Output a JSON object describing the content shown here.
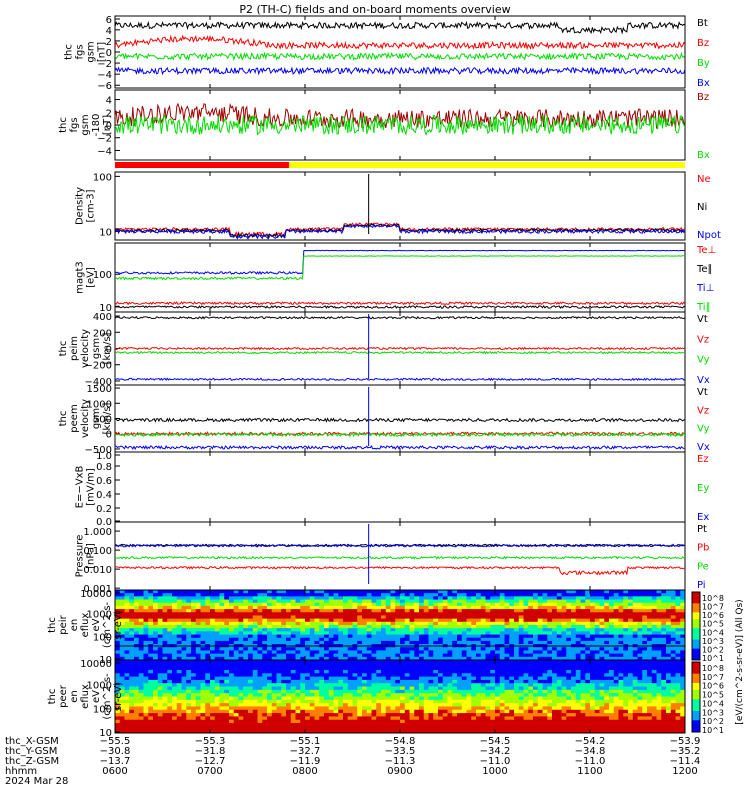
{
  "title": "P2 (TH-C) fields and on-board moments overview",
  "colors": {
    "black": "#000000",
    "red": "#ff0000",
    "green": "#00dd00",
    "blue": "#0000ff",
    "darkred": "#a00000",
    "yellow": "#ffff00",
    "lime": "#33ff33"
  },
  "chart_data": [
    {
      "id": "fgs",
      "type": "line",
      "ylabel": [
        "thc",
        "fgs",
        "gsm",
        "[nT]"
      ],
      "yticks": [
        "6",
        "4",
        "2",
        "0",
        "−2",
        "−4",
        "−6"
      ],
      "ylim": [
        -6.5,
        6.5
      ],
      "series": [
        {
          "name": "Bt",
          "color": "black",
          "base": 4.8
        },
        {
          "name": "Bz",
          "color": "red",
          "base": 1.2
        },
        {
          "name": "By",
          "color": "green",
          "base": -0.8
        },
        {
          "name": "Bx",
          "color": "blue",
          "base": -3.4
        }
      ]
    },
    {
      "id": "fgs_hp",
      "type": "line",
      "ylabel": [
        "thc",
        "fgs",
        "gsm",
        "-180",
        "[nT]"
      ],
      "yticks": [
        "4",
        "2",
        "0",
        "−2",
        "−4"
      ],
      "ylim": [
        -5.5,
        5.5
      ],
      "series": [
        {
          "name": "Bz",
          "color": "darkred",
          "base": 1.0
        },
        {
          "name": "Bx",
          "color": "green",
          "base": 0.0
        }
      ]
    },
    {
      "id": "mode",
      "type": "bar",
      "segments": [
        {
          "from": "0600",
          "to": "0750",
          "color": "red"
        },
        {
          "from": "0750",
          "to": "1200",
          "color": "yellow"
        }
      ]
    },
    {
      "id": "density",
      "type": "line",
      "yscale": "log",
      "ylabel": [
        "Density",
        "[cm-3]"
      ],
      "yticks": [
        "100",
        "10"
      ],
      "ylim": [
        7,
        120
      ],
      "series": [
        {
          "name": "Ne",
          "color": "red",
          "base": 11
        },
        {
          "name": "Ni",
          "color": "black",
          "base": 10.5
        },
        {
          "name": "Npot",
          "color": "blue",
          "base": 10
        }
      ]
    },
    {
      "id": "temp",
      "type": "line",
      "yscale": "log",
      "ylabel": [
        "magt3",
        "[eV]"
      ],
      "yticks": [
        "100",
        "10"
      ],
      "ylim": [
        7,
        900
      ],
      "series": [
        {
          "name": "Te⊥",
          "color": "red",
          "base": 13
        },
        {
          "name": "Te∥",
          "color": "black",
          "base": 10
        },
        {
          "name": "Ti⊥",
          "color": "blue",
          "base": 110
        },
        {
          "name": "Ti∥",
          "color": "green",
          "base": 75
        }
      ]
    },
    {
      "id": "vi",
      "type": "line",
      "ylabel": [
        "thc",
        "peim",
        "velocity",
        "gsm",
        "[km/s]"
      ],
      "yticks": [
        "400",
        "200",
        "0",
        "−200",
        "−400"
      ],
      "ylim": [
        -450,
        450
      ],
      "series": [
        {
          "name": "Vt",
          "color": "black",
          "base": 380
        },
        {
          "name": "Vz",
          "color": "red",
          "base": 0
        },
        {
          "name": "Vy",
          "color": "green",
          "base": -50
        },
        {
          "name": "Vx",
          "color": "blue",
          "base": -380
        }
      ]
    },
    {
      "id": "ve",
      "type": "line",
      "ylabel": [
        "thc",
        "peem",
        "velocity",
        "gsm",
        "[km/s]"
      ],
      "yticks": [
        "1500",
        "1000",
        "500",
        "0",
        "−500"
      ],
      "ylim": [
        -600,
        1600
      ],
      "series": [
        {
          "name": "Vt",
          "color": "black",
          "base": 450
        },
        {
          "name": "Vz",
          "color": "red",
          "base": 0
        },
        {
          "name": "Vy",
          "color": "green",
          "base": -30
        },
        {
          "name": "Vx",
          "color": "blue",
          "base": -450
        }
      ]
    },
    {
      "id": "efield",
      "type": "line",
      "ylabel": [
        "E=−VxB",
        "[mV/m]"
      ],
      "yticks": [
        "1.0",
        "0.8",
        "0.6",
        "0.4",
        "0.2",
        "0.0"
      ],
      "ylim": [
        0,
        1
      ],
      "series": [
        {
          "name": "Ez",
          "color": "red"
        },
        {
          "name": "Ey",
          "color": "green"
        },
        {
          "name": "Ex",
          "color": "blue"
        }
      ]
    },
    {
      "id": "pressure",
      "type": "line",
      "yscale": "log",
      "ylabel": [
        "Pressure",
        "[nPa]"
      ],
      "yticks": [
        "1.000",
        "0.100",
        "0.010",
        "0.001"
      ],
      "ylim": [
        0.0008,
        3
      ],
      "series": [
        {
          "name": "Pt",
          "color": "black",
          "base": 0.18
        },
        {
          "name": "Pb",
          "color": "red",
          "base": 0.012
        },
        {
          "name": "Pe",
          "color": "green",
          "base": 0.04
        },
        {
          "name": "Pi",
          "color": "blue",
          "base": 0.17
        }
      ]
    },
    {
      "id": "ion_spec",
      "type": "heatmap",
      "ylabel": [
        "thc",
        "peir",
        "en",
        "eflux",
        "eV",
        "(cm^2-s-",
        "sr-eV)"
      ],
      "yticks": [
        "10000",
        "1000",
        "100",
        "10"
      ]
    },
    {
      "id": "ele_spec",
      "type": "heatmap",
      "ylabel": [
        "thc",
        "peer",
        "en",
        "eflux",
        "eV",
        "(cm^2-s-",
        "sr-eV)"
      ],
      "yticks": [
        "10000",
        "1000",
        "100",
        "10"
      ]
    }
  ],
  "colorbar": {
    "label": "[eV/(cm^2-s-sr-eV)] (All Qs)",
    "ticks_top": [
      "10^8",
      "10^7",
      "10^6",
      "10^5",
      "10^4",
      "10^3",
      "10^2",
      "10^1"
    ],
    "ticks_bottom": [
      "10^8",
      "10^7",
      "10^6",
      "10^5",
      "10^4",
      "10^3",
      "10^2",
      "10^1"
    ]
  },
  "x_axis": {
    "rows": [
      {
        "label": "thc_X-GSM",
        "values": [
          "−55.5",
          "−55.3",
          "−55.1",
          "−54.8",
          "−54.5",
          "−54.2",
          "−53.9"
        ]
      },
      {
        "label": "thc_Y-GSM",
        "values": [
          "−30.8",
          "−31.8",
          "−32.7",
          "−33.5",
          "−34.2",
          "−34.8",
          "−35.2"
        ]
      },
      {
        "label": "thc_Z-GSM",
        "values": [
          "−13.7",
          "−12.7",
          "−11.9",
          "−11.3",
          "−11.0",
          "−11.0",
          "−11.4"
        ]
      },
      {
        "label": "hhmm",
        "values": [
          "0600",
          "0700",
          "0800",
          "0900",
          "1000",
          "1100",
          "1200"
        ]
      }
    ],
    "date": "2024 Mar 28"
  }
}
